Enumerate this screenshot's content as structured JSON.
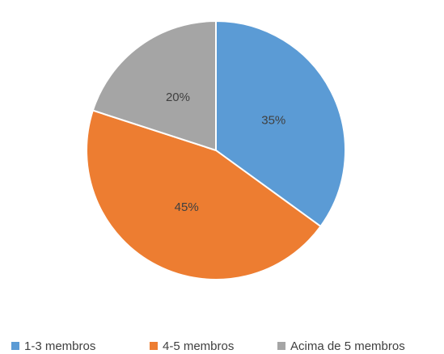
{
  "chart_data": {
    "type": "pie",
    "categories": [
      "1-3 membros",
      "4-5 membros",
      "Acima de 5 membros"
    ],
    "values": [
      35,
      45,
      20
    ],
    "value_labels": [
      "35%",
      "45%",
      "20%"
    ],
    "colors": [
      "#5b9bd5",
      "#ed7d31",
      "#a5a5a5"
    ],
    "legend": "bottom"
  }
}
